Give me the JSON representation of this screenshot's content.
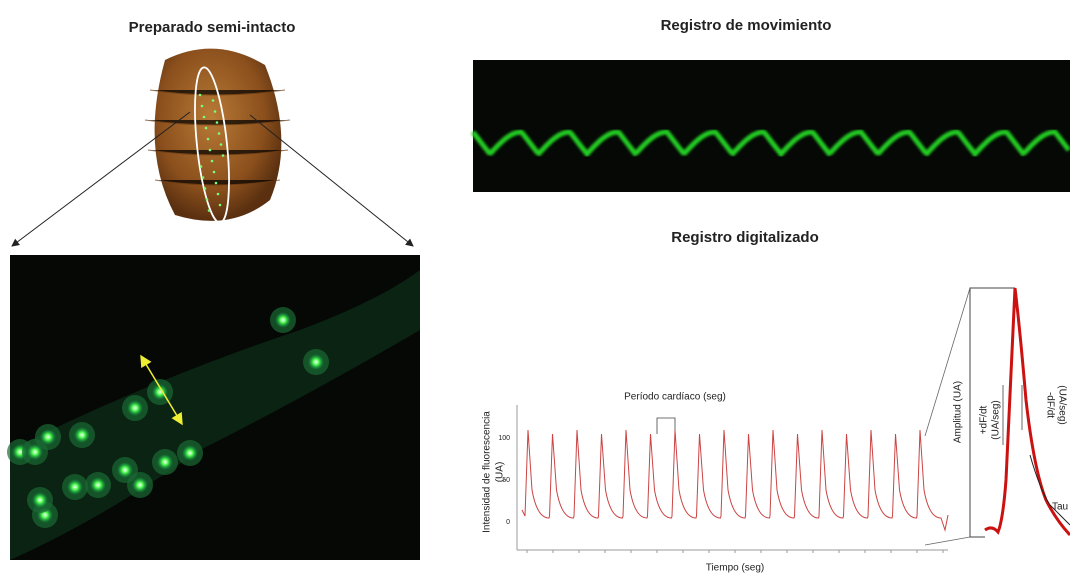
{
  "panels": {
    "preparation": {
      "title": "Preparado semi-intacto"
    },
    "movement": {
      "title": "Registro de movimiento"
    },
    "digitized": {
      "title": "Registro digitalizado",
      "y_label_lines": [
        "Intensidad de fluorescencia",
        "(UA)"
      ],
      "x_label": "Tiempo (seg)",
      "yticks": [
        "100",
        "50",
        "0"
      ],
      "period_label": "Período cardíaco (seg)"
    },
    "detail": {
      "amplitude": "Amplitud  (UA)",
      "rise": [
        "+dF/dt",
        "(UA/seg)"
      ],
      "fall": [
        "-dF/dt",
        "(UA/seg)"
      ],
      "tau": "Tau"
    }
  }
}
